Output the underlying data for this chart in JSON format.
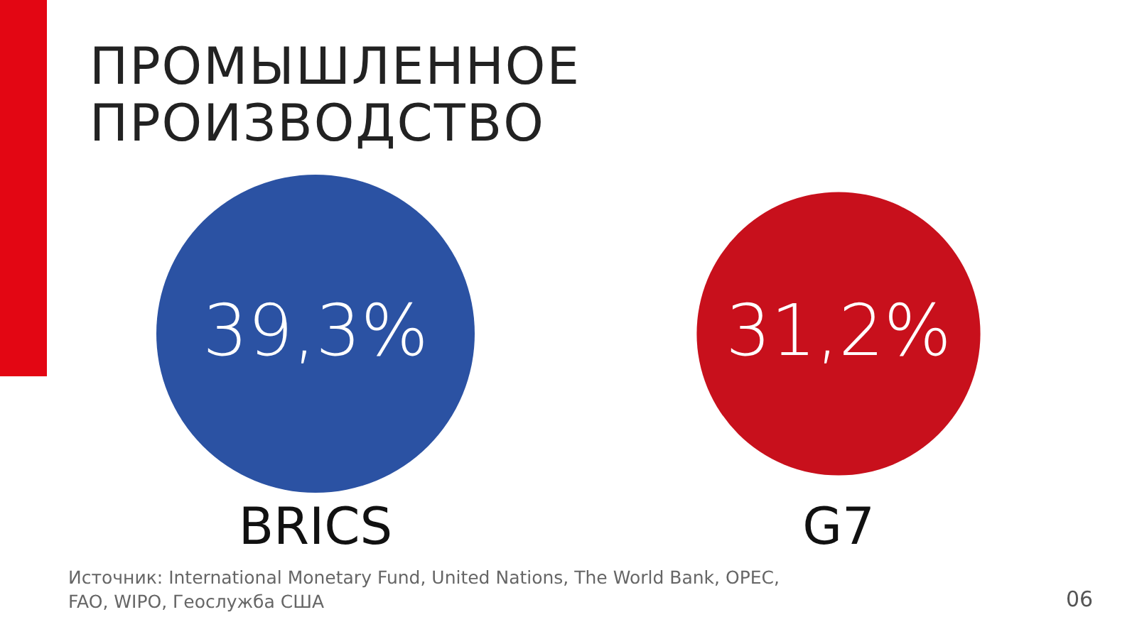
{
  "chart_data": {
    "type": "other",
    "title": "ПРОМЫШЛЕННОЕ ПРОИЗВОДСТВО",
    "categories": [
      "BRICS",
      "G7"
    ],
    "values": [
      39.3,
      31.2
    ],
    "value_labels": [
      "39,3%",
      "31,2%"
    ],
    "colors": [
      "#2b52a3",
      "#c8101c"
    ],
    "annotations": [
      "Источник: International Monetary Fund, United Nations, The World Bank, OPEC, FAO, WIPO, Геослужба США",
      "06"
    ]
  }
}
